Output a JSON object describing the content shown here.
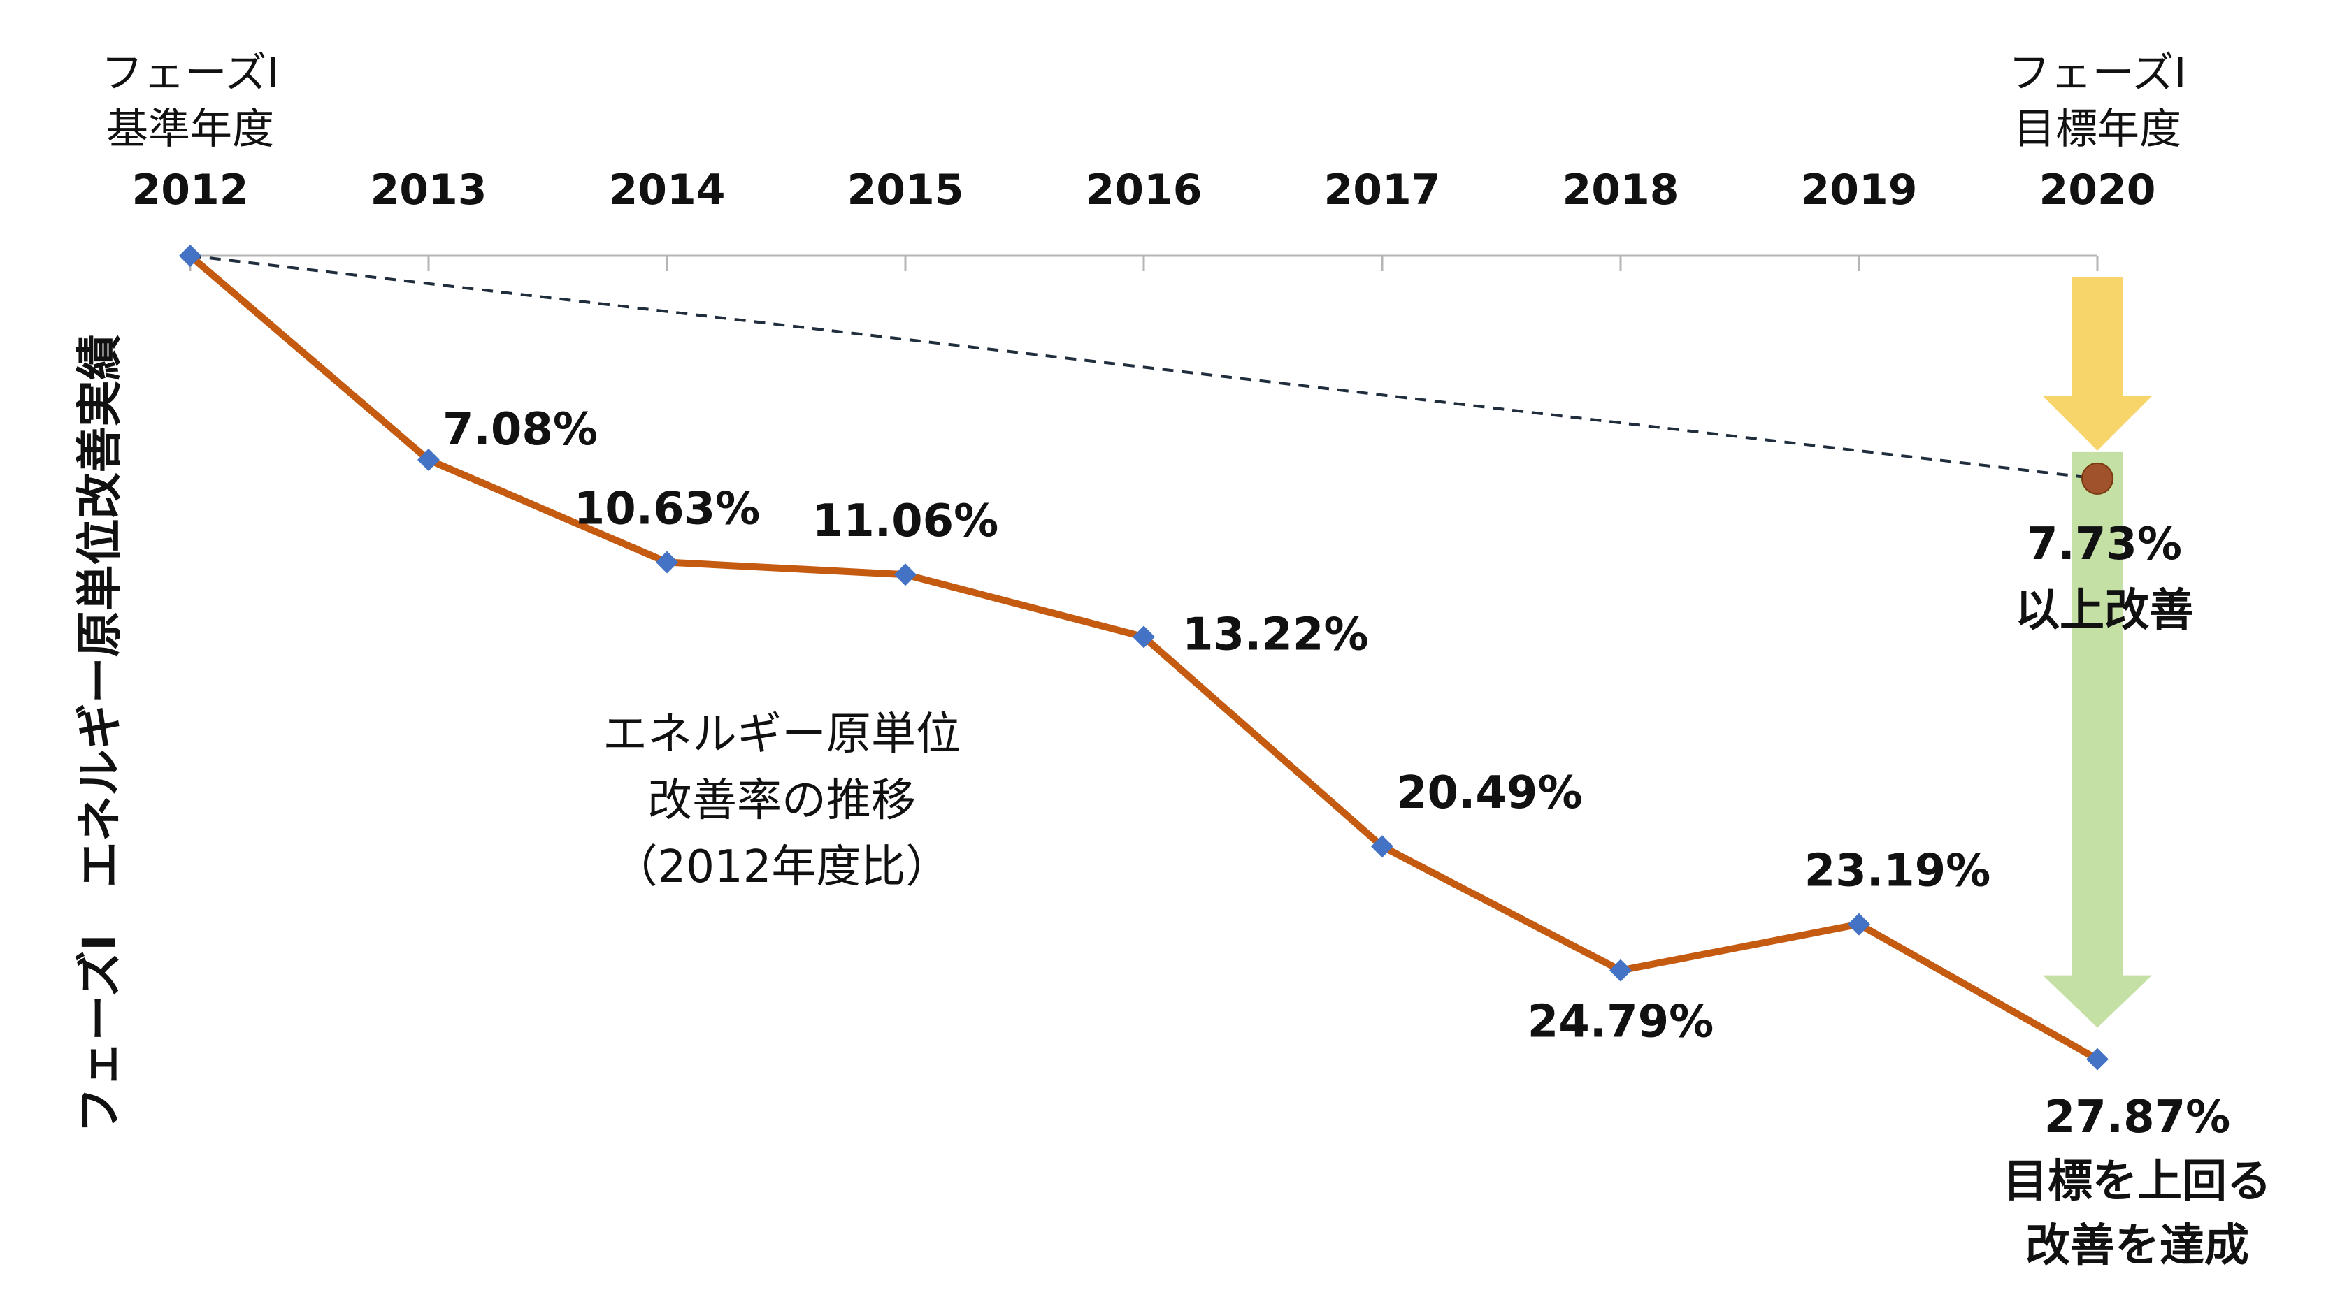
{
  "chart_data": {
    "type": "line",
    "y_axis_title": "フェーズⅠ　エネルギー原単位改善実績",
    "start_label": [
      "フェーズⅠ",
      "基準年度"
    ],
    "end_label": [
      "フェーズⅠ",
      "目標年度"
    ],
    "x": [
      "2012",
      "2013",
      "2014",
      "2015",
      "2016",
      "2017",
      "2018",
      "2019",
      "2020"
    ],
    "ylim": [
      0,
      28
    ],
    "y_reversed": true,
    "grid": false,
    "series": [
      {
        "name": "",
        "values": [
          0,
          7.08,
          10.63,
          11.06,
          13.22,
          20.49,
          24.79,
          23.19,
          27.87
        ],
        "labels": [
          "",
          "7.08%",
          "10.63%",
          "11.06%",
          "13.22%",
          "20.49%",
          "24.79%",
          "23.19%",
          "27.87%"
        ],
        "color": "#C55A11",
        "marker_color": "#4472C4"
      }
    ],
    "target_line": {
      "from": [
        "2012",
        0
      ],
      "to": [
        "2020",
        7.73
      ],
      "style": "dashed",
      "color": "#1F2D3D"
    },
    "target_point": {
      "x": "2020",
      "value": 7.73,
      "color": "#A0522D"
    },
    "target_label": [
      "7.73%",
      "以上改善"
    ],
    "result_label": [
      "27.87%",
      "目標を上回る",
      "改善を達成"
    ],
    "series_caption": [
      "エネルギー原単位",
      "改善率の推移",
      "（2012年度比）"
    ],
    "arrow_colors": {
      "upper": "#F7D56B",
      "lower": "#C5E0A5"
    }
  }
}
